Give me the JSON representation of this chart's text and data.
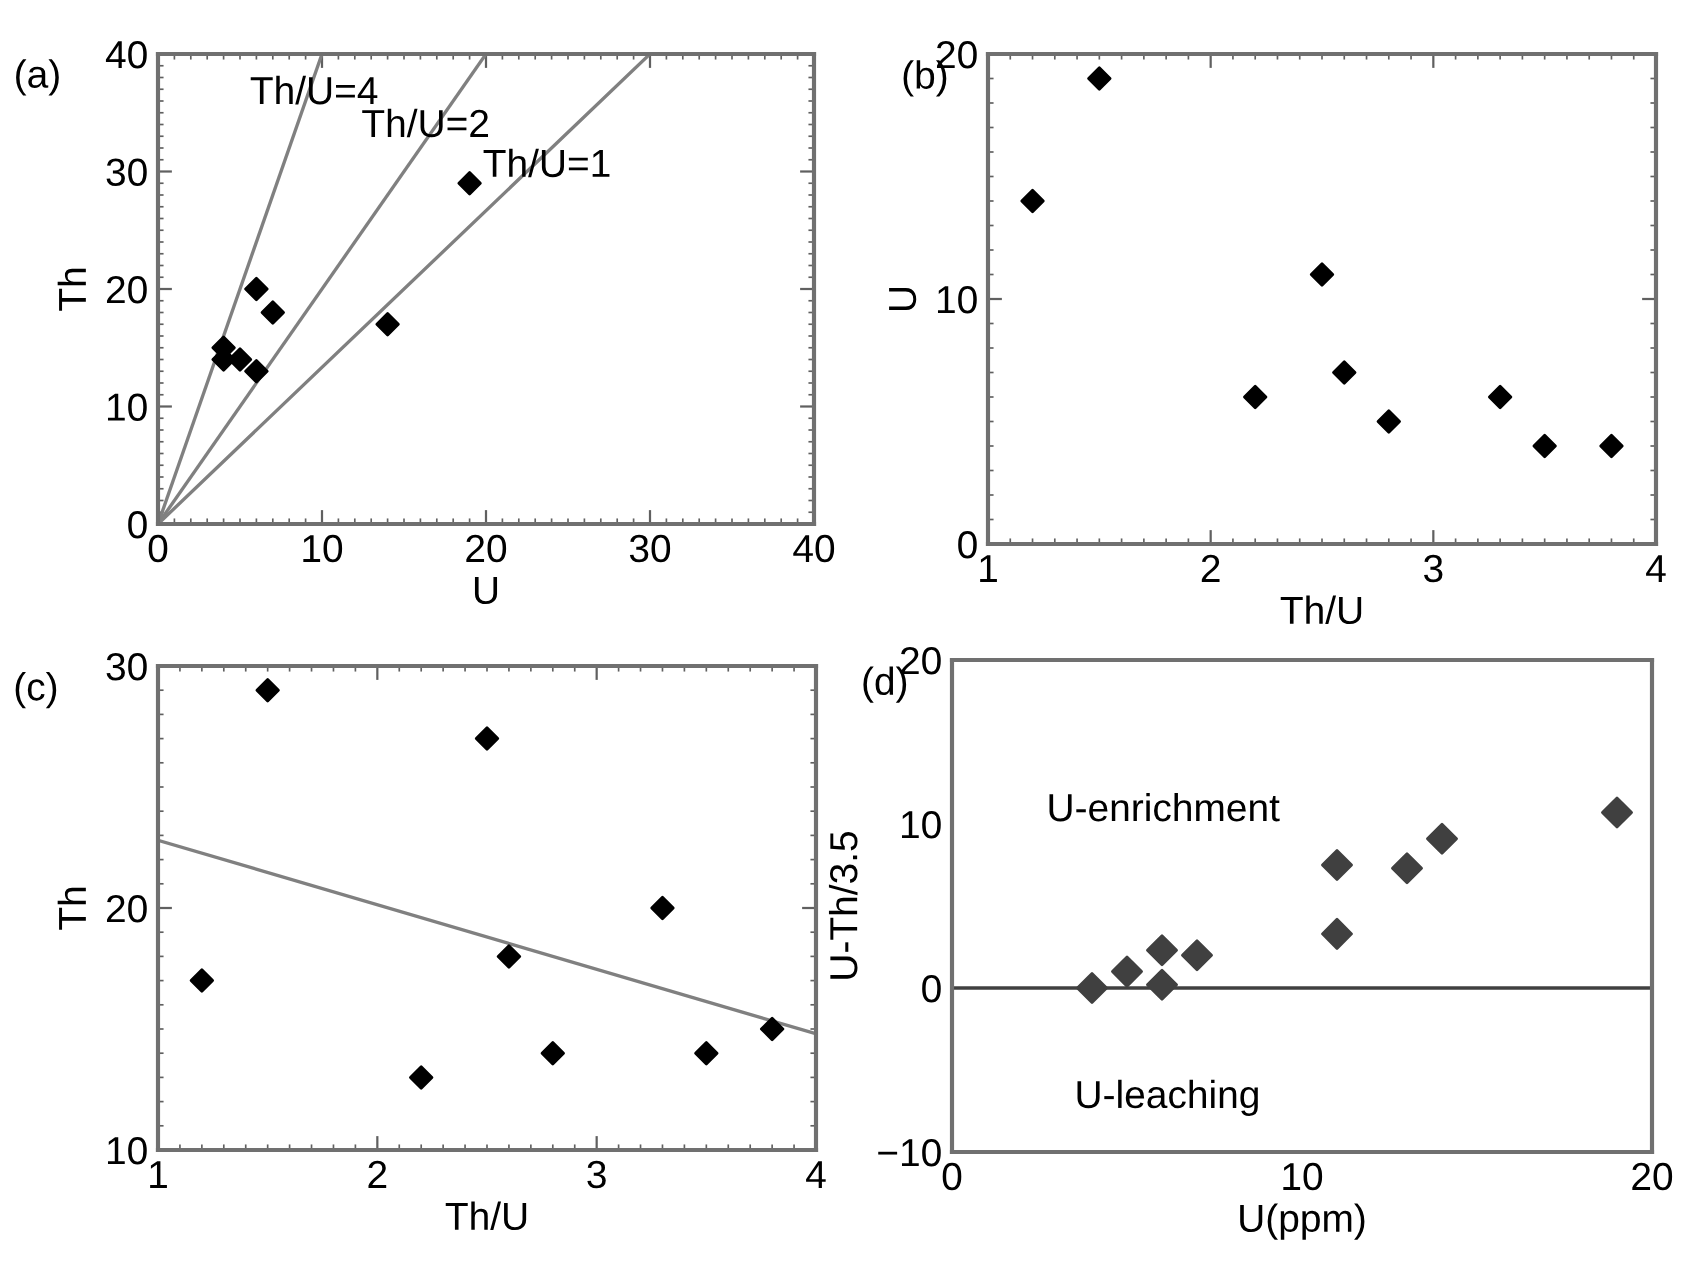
{
  "chart_data": [
    {
      "type": "scatter",
      "xlabel": "U",
      "ylabel": "Th",
      "xlim": [
        0,
        40
      ],
      "ylim": [
        0,
        40
      ],
      "xticks": [
        0,
        10,
        20,
        30,
        40
      ],
      "yticks": [
        0,
        10,
        20,
        30,
        40
      ],
      "marker": "diamond",
      "grid": false,
      "legend": false,
      "series": [
        {
          "color": "#000000",
          "x": [
            4,
            4,
            5,
            6,
            6,
            7,
            14,
            19
          ],
          "values": [
            15,
            14,
            14,
            13,
            20,
            18,
            17,
            29
          ]
        },
        {
          "type": "line",
          "marker": "none",
          "color": "#808080",
          "x": [
            0,
            10
          ],
          "values": [
            0,
            40
          ]
        },
        {
          "type": "line",
          "marker": "none",
          "color": "#808080",
          "x": [
            0,
            20
          ],
          "values": [
            0,
            40
          ]
        },
        {
          "type": "line",
          "marker": "none",
          "color": "#808080",
          "x": [
            0,
            30
          ],
          "values": [
            0,
            40
          ]
        }
      ],
      "annotations": [
        "(a)",
        "Th/U=4",
        "Th/U=2",
        "Th/U=1"
      ]
    },
    {
      "type": "scatter",
      "xlabel": "Th/U",
      "ylabel": "U",
      "xlim": [
        1,
        4
      ],
      "ylim": [
        0,
        20
      ],
      "xticks": [
        1,
        2,
        3,
        4
      ],
      "yticks": [
        0,
        10,
        20
      ],
      "marker": "diamond",
      "grid": false,
      "legend": false,
      "series": [
        {
          "color": "#000000",
          "x": [
            1.2,
            1.5,
            2.2,
            2.5,
            2.6,
            2.8,
            3.3,
            3.5,
            3.8
          ],
          "values": [
            14,
            19,
            6,
            11,
            7,
            5,
            6,
            4,
            4
          ]
        }
      ],
      "annotations": [
        "(b)"
      ]
    },
    {
      "type": "scatter",
      "xlabel": "Th/U",
      "ylabel": "Th",
      "xlim": [
        1,
        4
      ],
      "ylim": [
        10,
        30
      ],
      "xticks": [
        1,
        2,
        3,
        4
      ],
      "yticks": [
        10,
        20,
        30
      ],
      "marker": "diamond",
      "grid": false,
      "legend": false,
      "series": [
        {
          "color": "#000000",
          "x": [
            1.2,
            1.5,
            2.2,
            2.5,
            2.6,
            2.8,
            3.3,
            3.5,
            3.8
          ],
          "values": [
            17,
            29,
            13,
            27,
            18,
            14,
            20,
            14,
            15
          ]
        },
        {
          "type": "line",
          "marker": "none",
          "color": "#808080",
          "x": [
            1,
            4
          ],
          "values": [
            22.8,
            14.8
          ]
        }
      ],
      "annotations": [
        "(c)"
      ]
    },
    {
      "type": "scatter",
      "xlabel": "U(ppm)",
      "ylabel": "U-Th/3.5",
      "xlim": [
        0,
        20
      ],
      "ylim": [
        -10,
        20
      ],
      "xticks": [
        0,
        10,
        20
      ],
      "yticks": [
        {
          "value": -10,
          "label": "−10"
        },
        0,
        10,
        20
      ],
      "marker": "diamond",
      "grid": false,
      "legend": false,
      "series": [
        {
          "color": "#404040",
          "x": [
            4,
            5,
            6,
            6,
            7,
            11,
            11,
            13,
            14,
            19
          ],
          "values": [
            0,
            1,
            2.3,
            0.2,
            2,
            3.3,
            7.5,
            7.3,
            9.1,
            10.7
          ]
        }
      ],
      "ref_lines": [
        {
          "axis": "y",
          "value": 0,
          "color": "#404040"
        }
      ],
      "annotations": [
        "(d)",
        "U-enrichment",
        "U-leaching"
      ]
    }
  ]
}
